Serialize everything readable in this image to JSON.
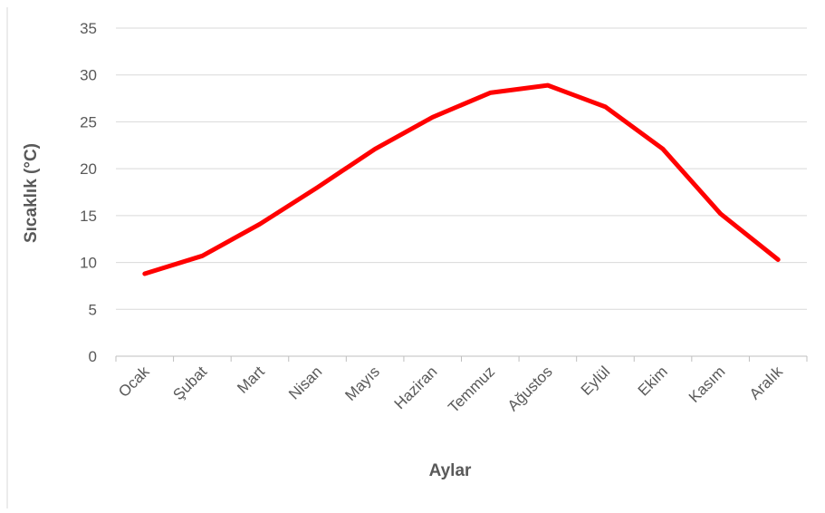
{
  "chart_data": {
    "type": "line",
    "title": "",
    "xlabel": "Aylar",
    "ylabel": "Sıcaklık (°C)",
    "ylim": [
      0,
      35
    ],
    "yticks": [
      "0",
      "5",
      "10",
      "15",
      "20",
      "25",
      "30",
      "35"
    ],
    "grid": true,
    "legend": "none",
    "categories": [
      "Ocak",
      "Şubat",
      "Mart",
      "Nisan",
      "Mayıs",
      "Haziran",
      "Temmuz",
      "Ağustos",
      "Eylül",
      "Ekim",
      "Kasım",
      "Aralık"
    ],
    "series": [
      {
        "color": "#ff0000",
        "values": [
          8.8,
          10.7,
          14.1,
          18.0,
          22.1,
          25.5,
          28.1,
          28.9,
          26.6,
          22.1,
          15.2,
          10.3
        ]
      }
    ]
  }
}
